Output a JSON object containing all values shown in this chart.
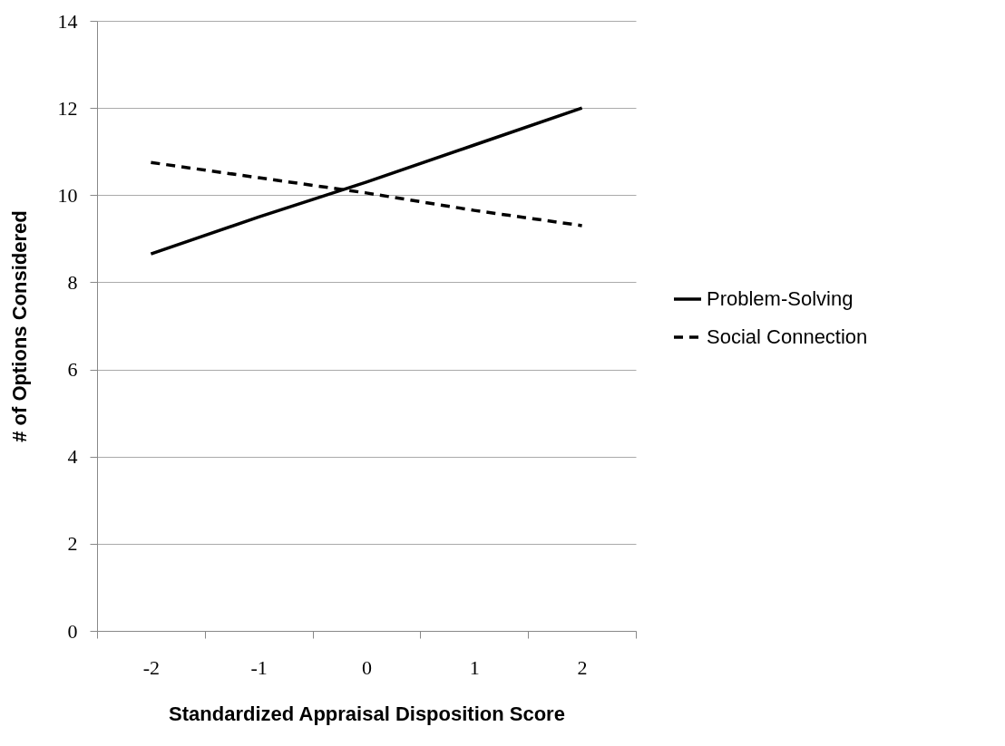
{
  "chart_data": {
    "type": "line",
    "xlabel": "Standardized Appraisal Disposition Score",
    "ylabel": "# of Options Considered",
    "categories": [
      "-2",
      "-1",
      "0",
      "1",
      "2"
    ],
    "ylim": [
      0,
      14
    ],
    "yticks": [
      0,
      2,
      4,
      6,
      8,
      10,
      12,
      14
    ],
    "grid": "y",
    "legend": "right",
    "marker": "none",
    "series": [
      {
        "name": "Problem-Solving",
        "color": "#000000",
        "line_style": "solid",
        "values": [
          8.65,
          9.5,
          10.3,
          11.15,
          12.0
        ]
      },
      {
        "name": "Social Connection",
        "color": "#000000",
        "line_style": "dashed",
        "values": [
          10.75,
          10.4,
          10.05,
          9.65,
          9.3
        ]
      }
    ]
  }
}
